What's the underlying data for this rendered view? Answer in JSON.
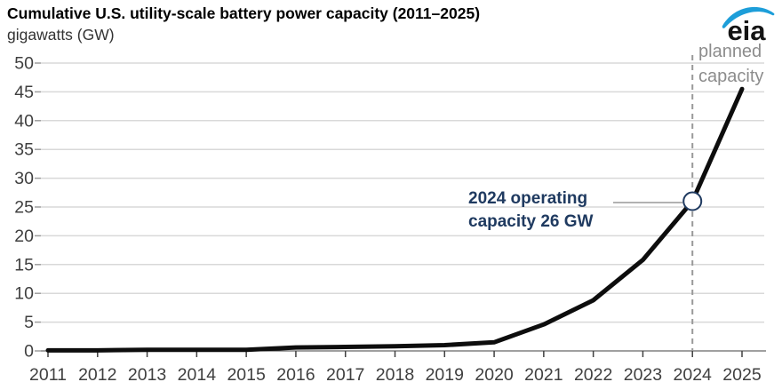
{
  "header": {
    "title": "Cumulative U.S. utility-scale battery power capacity (2011–2025)",
    "subtitle": "gigawatts (GW)",
    "logo_text": "eia"
  },
  "annotations": {
    "operating_line1": "2024 operating",
    "operating_line2": "capacity 26 GW",
    "planned_line1": "planned",
    "planned_line2": "capacity"
  },
  "colors": {
    "line": "#0d0d0d",
    "gridline": "#d9d9d9",
    "axis": "#404040",
    "tick": "#9e9e9e",
    "dashed_divider": "#999999",
    "callout_text": "#1f3a60",
    "marker_stroke": "#1f3a60",
    "planned_text": "#8c8c8c",
    "logo_blue": "#1d9ed9"
  },
  "chart_data": {
    "type": "line",
    "title": "Cumulative U.S. utility-scale battery power capacity (2011–2025)",
    "ylabel": "gigawatts (GW)",
    "xlabel": "",
    "x": [
      2011,
      2012,
      2013,
      2014,
      2015,
      2016,
      2017,
      2018,
      2019,
      2020,
      2021,
      2022,
      2023,
      2024,
      2025
    ],
    "values": [
      0.1,
      0.1,
      0.2,
      0.2,
      0.2,
      0.6,
      0.7,
      0.8,
      1.0,
      1.5,
      4.6,
      8.8,
      15.8,
      26.0,
      45.5
    ],
    "ylim": [
      0,
      50
    ],
    "ytick_step": 5,
    "grid": true,
    "legend": "none",
    "callout_point": {
      "year": 2024,
      "value": 26,
      "label": "2024 operating capacity 26 GW"
    },
    "planned_divider_year": 2024,
    "planned_note": "planned capacity"
  }
}
